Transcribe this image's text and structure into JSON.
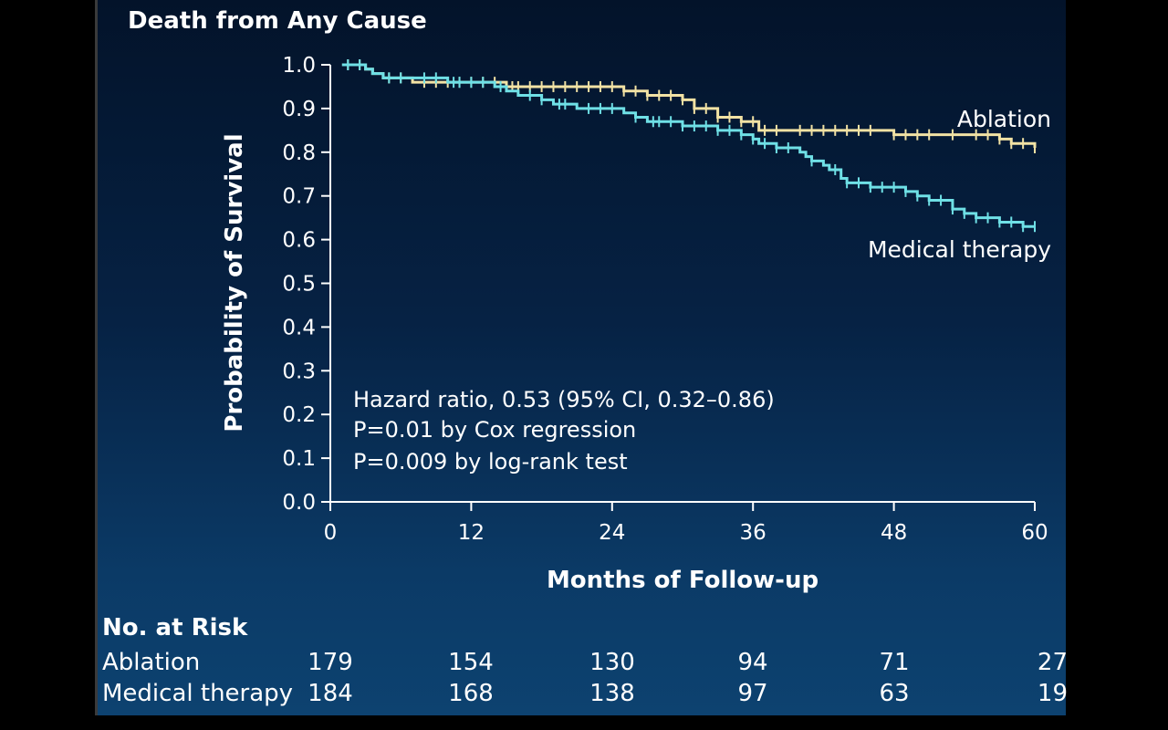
{
  "chart_data": {
    "type": "line",
    "title": "Death from Any Cause",
    "xlabel": "Months of Follow-up",
    "ylabel": "Probability of Survival",
    "xlim": [
      0,
      60
    ],
    "ylim": [
      0.0,
      1.0
    ],
    "xticks": [
      0,
      12,
      24,
      36,
      48,
      60
    ],
    "yticks": [
      0.0,
      0.1,
      0.2,
      0.3,
      0.4,
      0.5,
      0.6,
      0.7,
      0.8,
      0.9,
      1.0
    ],
    "colors": {
      "ablation": "#f2e2a4",
      "medical": "#6fe0e6",
      "axis": "#ffffff"
    },
    "series": [
      {
        "name": "Ablation",
        "x": [
          1,
          3,
          3.6,
          4.5,
          7,
          13,
          15,
          24,
          25,
          27,
          30,
          31,
          33,
          35,
          36.5,
          41,
          48,
          55,
          57,
          58,
          60
        ],
        "y": [
          1.0,
          0.99,
          0.98,
          0.97,
          0.96,
          0.96,
          0.95,
          0.95,
          0.94,
          0.93,
          0.92,
          0.9,
          0.88,
          0.87,
          0.85,
          0.85,
          0.84,
          0.84,
          0.83,
          0.82,
          0.81
        ],
        "censor_x": [
          1.5,
          2.5,
          5,
          6,
          8,
          9,
          10,
          11,
          12,
          13,
          14,
          15.5,
          16,
          17,
          18,
          19,
          20,
          21,
          22,
          23,
          24,
          25,
          26,
          27,
          28,
          29,
          30,
          31,
          32,
          33,
          34,
          35,
          36,
          37,
          38,
          40,
          41,
          42,
          43,
          44,
          45,
          46,
          48,
          49,
          50,
          51,
          53,
          55,
          56,
          57,
          58,
          59,
          60
        ]
      },
      {
        "name": "Medical therapy",
        "x": [
          1,
          3,
          3.6,
          4.5,
          7,
          10,
          13,
          14,
          15,
          16,
          18,
          19,
          21,
          25,
          26,
          27,
          30,
          33,
          35,
          36,
          36.5,
          37,
          38,
          40,
          40.5,
          41,
          42,
          42.5,
          43.5,
          44,
          46,
          49,
          50,
          51,
          53,
          54,
          55,
          56,
          57,
          58,
          59,
          60
        ],
        "y": [
          1.0,
          0.99,
          0.98,
          0.97,
          0.97,
          0.96,
          0.96,
          0.95,
          0.94,
          0.93,
          0.92,
          0.91,
          0.9,
          0.89,
          0.88,
          0.87,
          0.86,
          0.85,
          0.84,
          0.83,
          0.82,
          0.82,
          0.81,
          0.8,
          0.79,
          0.78,
          0.77,
          0.76,
          0.74,
          0.73,
          0.72,
          0.71,
          0.7,
          0.69,
          0.67,
          0.66,
          0.65,
          0.65,
          0.64,
          0.64,
          0.63,
          0.63
        ],
        "censor_x": [
          1.5,
          2.5,
          5,
          6,
          8,
          9,
          10.5,
          11,
          12,
          13,
          14.5,
          17,
          18,
          19.5,
          20,
          22,
          23,
          24,
          26,
          27.5,
          28,
          29,
          30,
          31,
          32,
          33,
          34,
          35,
          36,
          37,
          38,
          39,
          41,
          43,
          44,
          45,
          46,
          47,
          48,
          49,
          50,
          51,
          52,
          53,
          54,
          55,
          56,
          57,
          58,
          59,
          60
        ]
      }
    ],
    "series_labels": [
      "Ablation",
      "Medical therapy"
    ],
    "annotations": [
      "Hazard ratio, 0.53 (95% CI, 0.32–0.86)",
      "P=0.01 by Cox regression",
      "P=0.009 by log-rank test"
    ]
  },
  "risk_table": {
    "heading": "No. at Risk",
    "rows": [
      {
        "label": "Ablation",
        "values": [
          "179",
          "154",
          "130",
          "94",
          "71",
          "27"
        ]
      },
      {
        "label": "Medical therapy",
        "values": [
          "184",
          "168",
          "138",
          "97",
          "63",
          "19"
        ]
      }
    ]
  }
}
